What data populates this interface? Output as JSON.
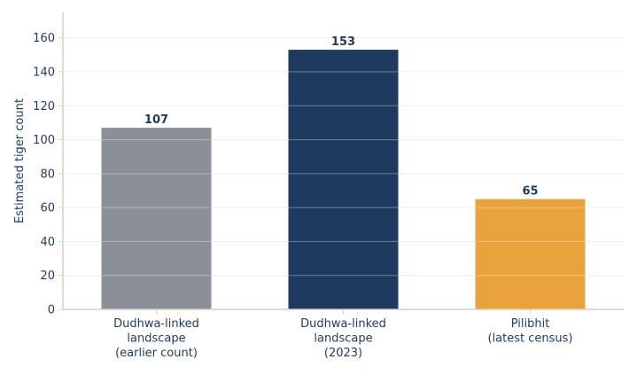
{
  "chart_data": {
    "type": "bar",
    "title": "",
    "xlabel": "",
    "ylabel": "Estimated tiger count",
    "ylim": [
      0,
      175
    ],
    "yticks": [
      0,
      20,
      40,
      60,
      80,
      100,
      120,
      140,
      160
    ],
    "grid": true,
    "legend": "none",
    "categories": [
      [
        "Dudhwa-linked",
        "landscape",
        "(earlier count)"
      ],
      [
        "Dudhwa-linked",
        "landscape",
        "(2023)"
      ],
      [
        "Pilibhit",
        "(latest census)"
      ]
    ],
    "values": [
      107,
      153,
      65
    ],
    "data_labels": [
      "107",
      "153",
      "65"
    ],
    "bar_colors": [
      "#8a8f98",
      "#1f3a5f",
      "#e8a33d"
    ],
    "colors": {
      "text": "#1f3a5f",
      "axis": "#d8d0bd",
      "grid": "#e6e6e6",
      "background": "#ffffff"
    }
  }
}
